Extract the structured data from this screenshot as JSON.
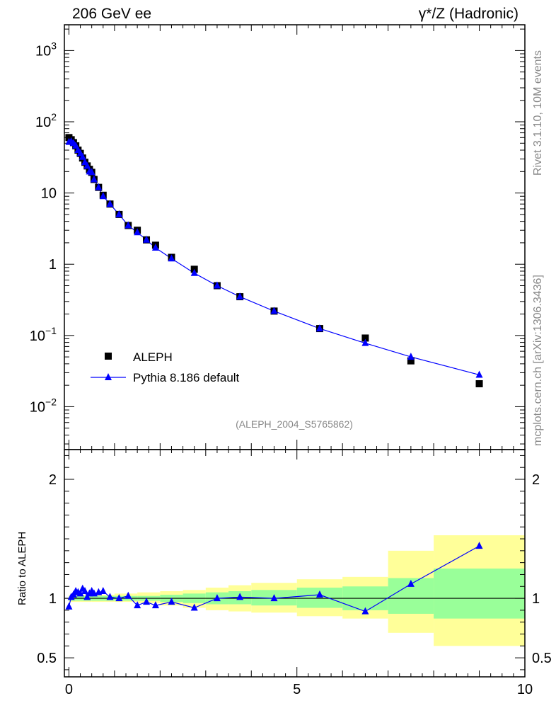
{
  "header": {
    "left": "206 GeV ee",
    "right": "γ*/Z (Hadronic)"
  },
  "side_labels": {
    "rivet": "Rivet 3.1.10,  10M events",
    "mcplots": "mcplots.cern.ch [arXiv:1306.3436]"
  },
  "analysis_id": "(ALEPH_2004_S5765862)",
  "colors": {
    "mc": "#0000ff",
    "data": "#000000",
    "band_outer": "#ffff99",
    "band_inner": "#99ff99"
  },
  "chart_data": [
    {
      "type": "scatter",
      "panel": "main",
      "yscale": "log",
      "xlim": [
        -0.1,
        10
      ],
      "ylim": [
        0.0025,
        2300
      ],
      "y_ticks": [
        {
          "label": "10",
          "sup": "3"
        },
        {
          "label": "10",
          "sup": "2"
        },
        {
          "label": "10",
          "sup": ""
        },
        {
          "label": "1",
          "sup": ""
        },
        {
          "label": "10",
          "sup": "−1"
        },
        {
          "label": "10",
          "sup": "−2"
        }
      ],
      "legend": {
        "placement": "bottom-left"
      },
      "series": [
        {
          "name": "ALEPH",
          "marker": "square",
          "x": [
            0.0,
            0.05,
            0.1,
            0.15,
            0.2,
            0.25,
            0.3,
            0.35,
            0.4,
            0.45,
            0.5,
            0.55,
            0.65,
            0.75,
            0.9,
            1.1,
            1.3,
            1.5,
            1.7,
            1.9,
            2.25,
            2.75,
            3.25,
            3.75,
            4.5,
            5.5,
            6.5,
            7.5,
            9.0
          ],
          "y": [
            60,
            56,
            51,
            46,
            40,
            36,
            31,
            27,
            24,
            21.5,
            19.5,
            15.5,
            12,
            9.3,
            7.0,
            5.0,
            3.5,
            3.0,
            2.2,
            1.85,
            1.25,
            0.85,
            0.5,
            0.35,
            0.22,
            0.125,
            0.092,
            0.044,
            0.021
          ]
        },
        {
          "name": "Pythia 8.186 default",
          "marker": "triangle",
          "x": [
            0.0,
            0.05,
            0.1,
            0.15,
            0.2,
            0.25,
            0.3,
            0.35,
            0.4,
            0.45,
            0.5,
            0.55,
            0.65,
            0.75,
            0.9,
            1.1,
            1.3,
            1.5,
            1.7,
            1.9,
            2.25,
            2.75,
            3.25,
            3.75,
            4.5,
            5.5,
            6.5,
            7.5,
            9.0
          ],
          "y": [
            52,
            53,
            50,
            46,
            40,
            36,
            32,
            27,
            24,
            20,
            19.5,
            15.5,
            12,
            9.0,
            7.0,
            5.0,
            3.5,
            2.8,
            2.2,
            1.7,
            1.2,
            0.75,
            0.5,
            0.35,
            0.22,
            0.125,
            0.078,
            0.05,
            0.028
          ]
        }
      ]
    },
    {
      "type": "line",
      "panel": "ratio",
      "ylabel": "Ratio to ALEPH",
      "xlim": [
        -0.1,
        10
      ],
      "ylim": [
        0.34,
        2.25
      ],
      "x_ticks": [
        "0",
        "5",
        "10"
      ],
      "y_ticks": [
        "2",
        "1",
        "0.5"
      ],
      "bands": {
        "edges": [
          0,
          0.25,
          0.5,
          1,
          1.5,
          2,
          2.5,
          3,
          3.5,
          4,
          5,
          6,
          7,
          8,
          10
        ],
        "outer_lo": [
          0.97,
          0.97,
          0.97,
          0.97,
          0.96,
          0.94,
          0.92,
          0.9,
          0.89,
          0.88,
          0.85,
          0.83,
          0.71,
          0.6
        ],
        "outer_hi": [
          1.03,
          1.03,
          1.03,
          1.04,
          1.05,
          1.06,
          1.07,
          1.09,
          1.11,
          1.13,
          1.16,
          1.18,
          1.4,
          1.53
        ],
        "inner_lo": [
          0.98,
          0.98,
          0.98,
          0.98,
          0.98,
          0.97,
          0.96,
          0.95,
          0.95,
          0.94,
          0.92,
          0.9,
          0.87,
          0.83
        ],
        "inner_hi": [
          1.02,
          1.02,
          1.02,
          1.02,
          1.02,
          1.03,
          1.04,
          1.05,
          1.06,
          1.07,
          1.09,
          1.1,
          1.17,
          1.25
        ]
      },
      "series": [
        {
          "name": "Pythia 8.186 default / ALEPH",
          "x": [
            0.0,
            0.05,
            0.1,
            0.15,
            0.2,
            0.25,
            0.3,
            0.35,
            0.4,
            0.45,
            0.5,
            0.55,
            0.65,
            0.75,
            0.9,
            1.1,
            1.3,
            1.5,
            1.7,
            1.9,
            2.25,
            2.75,
            3.25,
            3.75,
            4.5,
            5.5,
            6.5,
            7.5,
            9.0
          ],
          "y": [
            0.93,
            1.01,
            1.03,
            1.06,
            1.05,
            1.04,
            1.08,
            1.06,
            1.01,
            1.04,
            1.06,
            1.04,
            1.05,
            1.06,
            1.01,
            1.0,
            1.02,
            0.94,
            0.97,
            0.94,
            0.97,
            0.92,
            1.0,
            1.01,
            1.0,
            1.03,
            0.89,
            1.12,
            1.44
          ]
        }
      ]
    }
  ]
}
